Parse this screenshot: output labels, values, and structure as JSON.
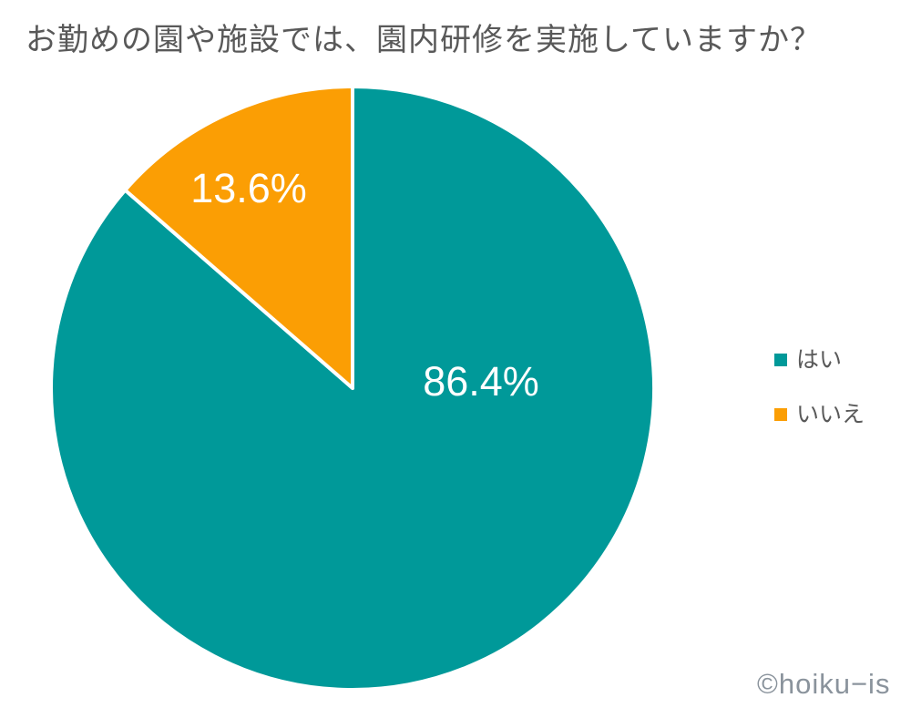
{
  "page": {
    "background_color": "#ffffff"
  },
  "title": {
    "text": "お勤めの園や施設では、園内研修を実施していますか？",
    "color": "#595959"
  },
  "watermark": {
    "text": "©hoiku−is",
    "color": "#8a939c"
  },
  "chart_data": {
    "type": "pie",
    "title": "お勤めの園や施設では、園内研修を実施していますか？",
    "unit": "%",
    "start_angle_deg": 0,
    "direction": "clockwise",
    "slice_border_color": "#ffffff",
    "slices": [
      {
        "name": "はい",
        "value": 86.4,
        "label": "86.4%",
        "color": "#009999"
      },
      {
        "name": "いいえ",
        "value": 13.6,
        "label": "13.6%",
        "color": "#FB9E04"
      }
    ],
    "legend": {
      "position": "right",
      "entries": [
        "はい",
        "いいえ"
      ]
    }
  }
}
